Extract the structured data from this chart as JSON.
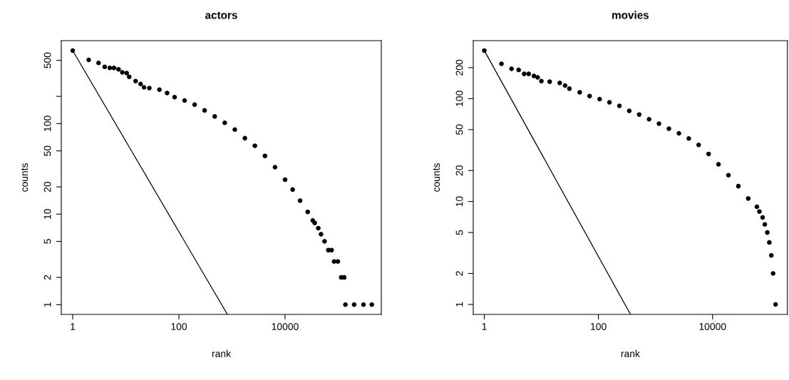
{
  "chart_data": [
    {
      "type": "scatter",
      "title": "actors",
      "xlabel": "rank",
      "ylabel": "counts",
      "log": "xy",
      "marker": "circle",
      "xlim": [
        0.61,
        650000
      ],
      "ylim": [
        0.78,
        826
      ],
      "xticks": [
        1,
        100,
        10000
      ],
      "yticks": [
        1,
        2,
        5,
        10,
        20,
        50,
        100,
        {
          "value": 200,
          "label": null
        },
        500
      ],
      "series": [
        {
          "color": "#000000",
          "x": [
            1,
            2,
            3.07,
            4,
            5,
            6,
            7.3,
            8.6,
            10.4,
            11.6,
            15.3,
            19,
            22,
            27.8,
            43,
            60,
            83,
            128,
            198,
            305,
            473,
            731,
            1130,
            1750,
            2700,
            4180,
            6470,
            10000,
            13900,
            19200,
            26700,
            33200,
            36200,
            42200,
            47500,
            55400,
            65200,
            75200,
            83800,
            98600,
            114000,
            130000,
            137000,
            200000,
            300000,
            430000
          ],
          "values": [
            640,
            506,
            469,
            424,
            413,
            413,
            398,
            369,
            362,
            329,
            295,
            274,
            252,
            247,
            237,
            218,
            196,
            180,
            162,
            140,
            120,
            102,
            86,
            69,
            57,
            44,
            33,
            24,
            18.7,
            14.1,
            10.6,
            8.5,
            8,
            7,
            6,
            5,
            4,
            4,
            3,
            3,
            2,
            2,
            1,
            1,
            1,
            1
          ]
        },
        {
          "type": "line",
          "marker": "none",
          "color": "#000000",
          "x": [
            1,
            820
          ],
          "values": [
            640,
            0.78
          ]
        }
      ]
    },
    {
      "type": "scatter",
      "title": "movies",
      "xlabel": "rank",
      "ylabel": "counts",
      "log": "xy",
      "marker": "circle",
      "xlim": [
        0.64,
        205000
      ],
      "ylim": [
        0.8,
        366
      ],
      "xticks": [
        1,
        100,
        10000
      ],
      "yticks": [
        1,
        2,
        5,
        10,
        20,
        50,
        100,
        200
      ],
      "series": [
        {
          "color": "#000000",
          "x": [
            1,
            2,
            3,
            4,
            5,
            6,
            7.4,
            8.6,
            10,
            14,
            21,
            26,
            31,
            47,
            70,
            105,
            156,
            233,
            347,
            518,
            773,
            1150,
            1720,
            2570,
            3830,
            5710,
            8530,
            12700,
            19000,
            28300,
            42200,
            59800,
            66200,
            75400,
            82400,
            91100,
            98800,
            107000,
            115000,
            127000
          ],
          "values": [
            293,
            218,
            195,
            190,
            174,
            174,
            166,
            161,
            148,
            146,
            142,
            134,
            125,
            115,
            106,
            99,
            92,
            85,
            76,
            70,
            63,
            57,
            51,
            46,
            41,
            35.5,
            29,
            23,
            18,
            14.1,
            10.7,
            8.9,
            8,
            7,
            6,
            5,
            4,
            3,
            2,
            1
          ]
        },
        {
          "type": "line",
          "marker": "none",
          "color": "#000000",
          "x": [
            1,
            365
          ],
          "values": [
            293,
            0.8
          ]
        }
      ]
    }
  ]
}
